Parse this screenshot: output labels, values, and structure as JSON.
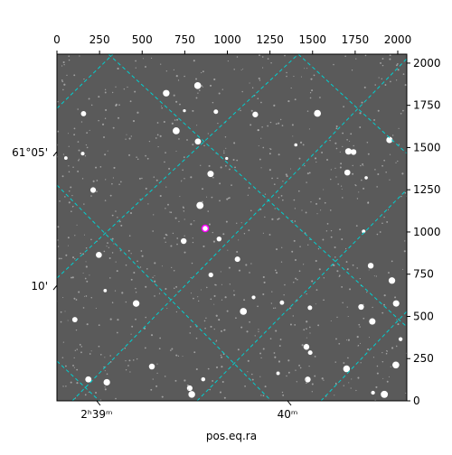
{
  "chart_data": {
    "type": "image",
    "xlabel": "pos.eq.ra",
    "xlim": [
      0,
      2053
    ],
    "ylim": [
      0,
      2053
    ],
    "xticks": [
      0,
      250,
      500,
      750,
      1000,
      1250,
      1500,
      1750,
      2000
    ],
    "yticks": [
      0,
      250,
      500,
      750,
      1000,
      1250,
      1500,
      1750,
      2000
    ],
    "ra_ticks": [
      {
        "value": 233,
        "label": "2ʰ39ᵐ"
      },
      {
        "value": 1353,
        "label": "40ᵐ"
      }
    ],
    "dec_ticks": [
      {
        "value": 1476,
        "label": "61°05'"
      },
      {
        "value": 684,
        "label": "10'"
      }
    ],
    "marker": {
      "x": 870,
      "y": 1021,
      "color": "#ff00ff"
    },
    "grid_color": "#00d0d0"
  }
}
